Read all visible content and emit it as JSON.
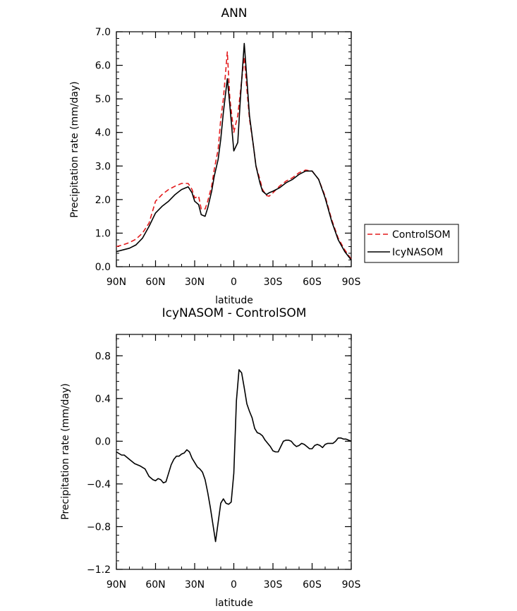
{
  "chart_data": [
    {
      "type": "line",
      "title": "ANN",
      "xlabel": "latitude",
      "ylabel": "Precipitation rate (mm/day)",
      "xlim": [
        90,
        -90
      ],
      "ylim": [
        0,
        7
      ],
      "x_ticks": [
        90,
        60,
        30,
        0,
        -30,
        -60,
        -90
      ],
      "x_tick_labels": [
        "90N",
        "60N",
        "30N",
        "0",
        "30S",
        "60S",
        "90S"
      ],
      "y_ticks": [
        0,
        1,
        2,
        3,
        4,
        5,
        6,
        7
      ],
      "y_tick_labels": [
        "0.0",
        "1.0",
        "2.0",
        "3.0",
        "4.0",
        "5.0",
        "6.0",
        "7.0"
      ],
      "legend_position": "right",
      "series": [
        {
          "name": "ControlSOM",
          "color": "#e31a1c",
          "dash": "dashed",
          "x": [
            90,
            85,
            80,
            75,
            70,
            65,
            60,
            55,
            50,
            45,
            40,
            35,
            32,
            30,
            27,
            25,
            22,
            20,
            17,
            15,
            12,
            10,
            8,
            5,
            3,
            0,
            -3,
            -5,
            -8,
            -10,
            -12,
            -15,
            -17,
            -20,
            -22,
            -25,
            -27,
            -30,
            -35,
            -40,
            -45,
            -50,
            -55,
            -60,
            -65,
            -70,
            -75,
            -80,
            -85,
            -90
          ],
          "y": [
            0.6,
            0.65,
            0.72,
            0.82,
            1.0,
            1.3,
            1.95,
            2.15,
            2.3,
            2.4,
            2.48,
            2.48,
            2.3,
            2.05,
            2.1,
            1.72,
            1.72,
            1.95,
            2.4,
            2.9,
            3.5,
            4.4,
            5.0,
            6.4,
            5.0,
            4.0,
            4.5,
            5.2,
            6.25,
            5.3,
            4.4,
            3.6,
            3.0,
            2.6,
            2.3,
            2.12,
            2.1,
            2.2,
            2.4,
            2.55,
            2.65,
            2.8,
            2.88,
            2.85,
            2.6,
            2.1,
            1.4,
            0.85,
            0.5,
            0.22
          ]
        },
        {
          "name": "IcyNASOM",
          "color": "#000000",
          "dash": "solid",
          "x": [
            90,
            85,
            80,
            75,
            70,
            65,
            60,
            55,
            50,
            45,
            40,
            35,
            32,
            30,
            27,
            25,
            22,
            20,
            17,
            15,
            12,
            10,
            8,
            5,
            3,
            0,
            -3,
            -5,
            -8,
            -10,
            -12,
            -15,
            -17,
            -20,
            -22,
            -25,
            -27,
            -30,
            -35,
            -40,
            -45,
            -50,
            -55,
            -60,
            -65,
            -70,
            -75,
            -80,
            -85,
            -90
          ],
          "y": [
            0.45,
            0.5,
            0.55,
            0.65,
            0.85,
            1.2,
            1.6,
            1.8,
            1.95,
            2.15,
            2.3,
            2.38,
            2.2,
            1.95,
            1.85,
            1.55,
            1.5,
            1.75,
            2.25,
            2.7,
            3.2,
            3.8,
            4.6,
            5.6,
            4.8,
            3.45,
            3.7,
            5.0,
            6.65,
            5.6,
            4.5,
            3.6,
            3.0,
            2.5,
            2.25,
            2.15,
            2.2,
            2.25,
            2.35,
            2.5,
            2.6,
            2.75,
            2.85,
            2.85,
            2.6,
            2.05,
            1.35,
            0.8,
            0.45,
            0.2
          ]
        }
      ]
    },
    {
      "type": "line",
      "title": "IcyNASOM - ControlSOM",
      "xlabel": "latitude",
      "ylabel": "Precipitation rate (mm/day)",
      "xlim": [
        90,
        -90
      ],
      "ylim": [
        -1.2,
        1.0
      ],
      "x_ticks": [
        90,
        60,
        30,
        0,
        -30,
        -60,
        -90
      ],
      "x_tick_labels": [
        "90N",
        "60N",
        "30N",
        "0",
        "30S",
        "60S",
        "90S"
      ],
      "y_ticks": [
        0.8,
        0.4,
        0.0,
        -0.4,
        -0.8,
        -1.2
      ],
      "y_tick_labels": [
        "0.8",
        "0.4",
        "0.0",
        "-0.4",
        "-0.8",
        "-1.2"
      ],
      "series": [
        {
          "color": "#000000",
          "x": [
            90,
            86,
            84,
            80,
            76,
            72,
            68,
            65,
            62,
            60,
            58,
            56,
            54,
            52,
            50,
            48,
            46,
            44,
            42,
            40,
            38,
            36,
            34,
            32,
            30,
            28,
            26,
            24,
            22,
            20,
            18,
            16,
            14,
            12,
            10,
            8,
            6,
            4,
            2,
            0,
            -2,
            -4,
            -6,
            -8,
            -10,
            -12,
            -14,
            -16,
            -18,
            -20,
            -22,
            -24,
            -26,
            -28,
            -30,
            -32,
            -34,
            -36,
            -38,
            -40,
            -42,
            -44,
            -46,
            -48,
            -50,
            -52,
            -54,
            -56,
            -58,
            -60,
            -62,
            -64,
            -66,
            -68,
            -70,
            -72,
            -74,
            -76,
            -78,
            -80,
            -82,
            -84,
            -86,
            -88,
            -90
          ],
          "y": [
            -0.1,
            -0.13,
            -0.13,
            -0.17,
            -0.21,
            -0.23,
            -0.26,
            -0.33,
            -0.36,
            -0.37,
            -0.35,
            -0.36,
            -0.39,
            -0.38,
            -0.3,
            -0.22,
            -0.17,
            -0.14,
            -0.14,
            -0.12,
            -0.11,
            -0.08,
            -0.1,
            -0.16,
            -0.2,
            -0.24,
            -0.26,
            -0.29,
            -0.36,
            -0.48,
            -0.62,
            -0.78,
            -0.94,
            -0.76,
            -0.58,
            -0.54,
            -0.58,
            -0.59,
            -0.57,
            -0.3,
            0.38,
            0.67,
            0.64,
            0.5,
            0.35,
            0.28,
            0.22,
            0.12,
            0.08,
            0.07,
            0.05,
            0.01,
            -0.02,
            -0.05,
            -0.09,
            -0.1,
            -0.1,
            -0.05,
            0.0,
            0.01,
            0.01,
            0.0,
            -0.03,
            -0.05,
            -0.04,
            -0.02,
            -0.03,
            -0.05,
            -0.07,
            -0.07,
            -0.04,
            -0.03,
            -0.04,
            -0.06,
            -0.03,
            -0.02,
            -0.02,
            -0.02,
            0.0,
            0.03,
            0.03,
            0.02,
            0.02,
            0.01,
            0.0
          ]
        }
      ]
    }
  ]
}
